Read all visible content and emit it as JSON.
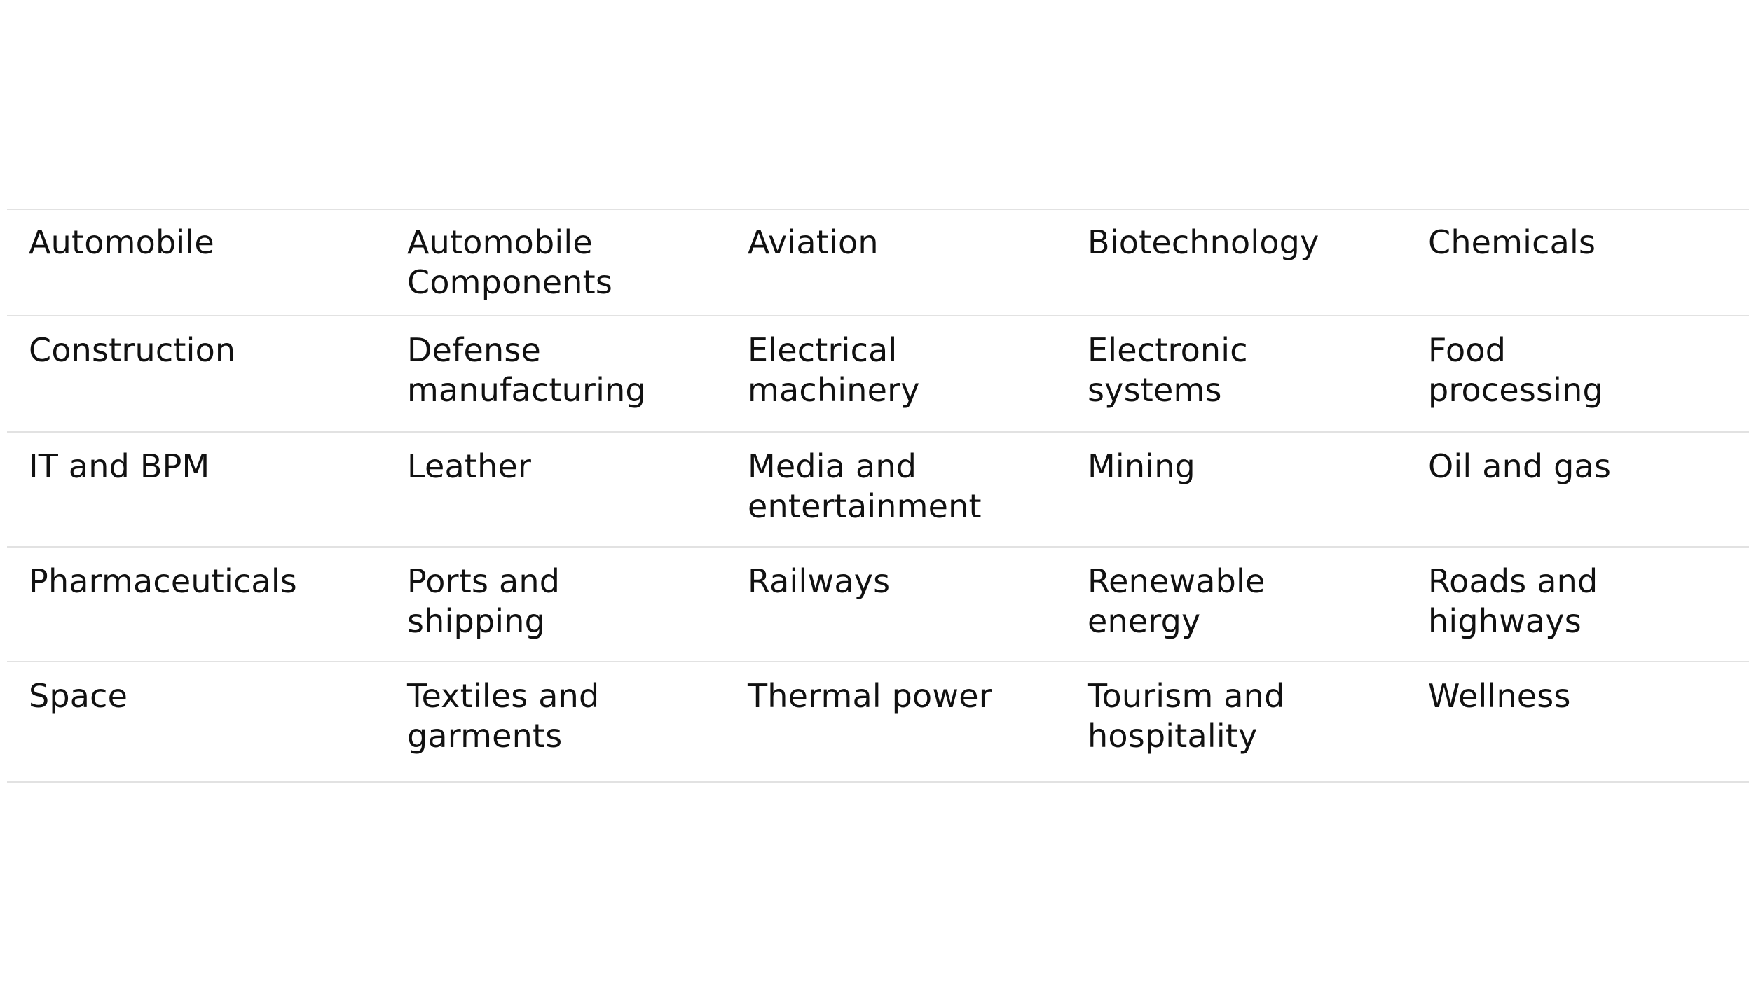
{
  "table": {
    "rows": [
      [
        "Automobile",
        "Automobile Components",
        "Aviation",
        "Biotechnology",
        "Chemicals"
      ],
      [
        "Construction",
        "Defense manufacturing",
        "Electrical machinery",
        "Electronic systems",
        "Food processing"
      ],
      [
        "IT and BPM",
        "Leather",
        "Media and entertainment",
        "Mining",
        "Oil and gas"
      ],
      [
        "Pharmaceuticals",
        "Ports and shipping",
        "Railways",
        "Renewable energy",
        "Roads and highways"
      ],
      [
        "Space",
        "Textiles and garments",
        "Thermal power",
        "Tourism and hospitality",
        "Wellness"
      ]
    ]
  }
}
